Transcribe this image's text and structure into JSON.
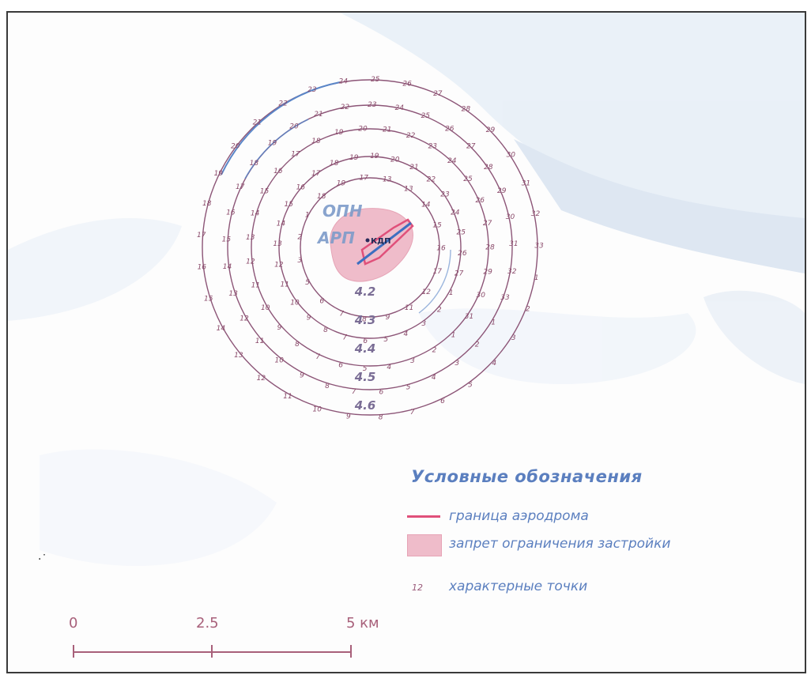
{
  "map": {
    "labels": {
      "opn": "ОПН",
      "arp": "АРП",
      "kdp": "КДП"
    },
    "ring_labels": [
      "4.2",
      "4.3",
      "4.4",
      "4.5",
      "4.6"
    ],
    "point_numbers": {
      "ring1": [
        "17",
        "13",
        "13",
        "14",
        "15",
        "16",
        "17",
        "12",
        "11",
        "9",
        "8",
        "7",
        "6",
        "5",
        "3",
        "2",
        "1",
        "18",
        "19"
      ],
      "ring2": [
        "19",
        "19",
        "20",
        "21",
        "22",
        "23",
        "24",
        "25",
        "26",
        "27",
        "1",
        "2",
        "3",
        "4",
        "5",
        "6",
        "7",
        "8",
        "9",
        "10",
        "11",
        "12",
        "13",
        "14",
        "15",
        "16",
        "17",
        "18"
      ],
      "ring3": [
        "19",
        "20",
        "21",
        "22",
        "23",
        "24",
        "25",
        "26",
        "27",
        "28",
        "29",
        "30",
        "31",
        "1",
        "2",
        "3",
        "4",
        "5",
        "6",
        "7",
        "8",
        "9",
        "10",
        "11",
        "12",
        "13",
        "14",
        "15",
        "16",
        "17",
        "18"
      ],
      "ring4": [
        "22",
        "23",
        "24",
        "25",
        "26",
        "27",
        "28",
        "29",
        "30",
        "31",
        "32",
        "33",
        "1",
        "2",
        "3",
        "4",
        "5",
        "6",
        "7",
        "8",
        "9",
        "10",
        "11",
        "12",
        "13",
        "14",
        "15",
        "16",
        "17",
        "18",
        "19",
        "20",
        "21"
      ],
      "ring5": [
        "23",
        "24",
        "25",
        "26",
        "27",
        "28",
        "29",
        "30",
        "31",
        "32",
        "33",
        "1",
        "2",
        "3",
        "4",
        "5",
        "6",
        "7",
        "8",
        "9",
        "10",
        "11",
        "12",
        "13",
        "14",
        "15",
        "16",
        "17",
        "18",
        "19",
        "20",
        "21",
        "22"
      ]
    }
  },
  "legend": {
    "title": "Условные обозначения",
    "items": [
      {
        "label": "граница аэродрома",
        "color": "#e0507a"
      },
      {
        "label": "запрет ограничения застройки",
        "color": "#efbcca"
      },
      {
        "label": "характерные точки",
        "color": "#9a5a7a"
      }
    ]
  },
  "scale": {
    "labels": [
      "0",
      "2.5",
      "5 км"
    ]
  },
  "colors": {
    "ring": "#8c5577",
    "ring_blue": "#5a86c8",
    "number": "#8a4a6a",
    "zone": "#efbcca",
    "boundary": "#e0507a",
    "runway": "#3d6fc0",
    "terrain": "#e4ecf5"
  }
}
